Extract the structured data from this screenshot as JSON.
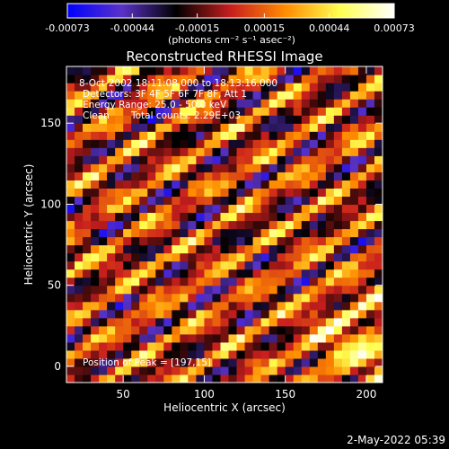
{
  "chart_data": {
    "type": "heatmap",
    "title": "Reconstructed RHESSI Image",
    "xlabel": "Heliocentric X (arcsec)",
    "ylabel": "Heliocentric Y (arcsec)",
    "xlim": [
      15,
      210
    ],
    "ylim": [
      -10,
      185
    ],
    "x_ticks": [
      50,
      100,
      150,
      200
    ],
    "y_ticks": [
      0,
      50,
      100,
      150
    ],
    "colorbar": {
      "min": -0.00073,
      "max": 0.00073,
      "tick_values": [
        -0.00073,
        -0.00044,
        -0.00015,
        0.00015,
        0.00044,
        0.00073
      ],
      "tick_labels": [
        "-0.00073",
        "-0.00044",
        "-0.00015",
        "0.00015",
        "0.00044",
        "0.00073"
      ],
      "unit_label": "(photons cm⁻² s⁻¹ asec⁻²)"
    },
    "annotations": {
      "time_range": "8-Oct-2002 18:11:08.000 to 18:13:16.000",
      "detectors": "Detectors: 3F 4F 5F 6F 7F 8F, Att 1",
      "energy_range": "Energy Range: 25.0 - 50.0 keV",
      "clean": "Clean",
      "total_counts": "Total counts: 2.29E+03",
      "peak": "Position of Peak = [197,15]"
    },
    "peak_position": [
      197,
      15
    ],
    "colormap": [
      "#0000ff",
      "#5a32c8",
      "#000000",
      "#c81e1e",
      "#ff8c00",
      "#ffff50",
      "#ffffff"
    ],
    "grid": false
  },
  "footer": {
    "date_stamp": "2-May-2022 05:39"
  }
}
